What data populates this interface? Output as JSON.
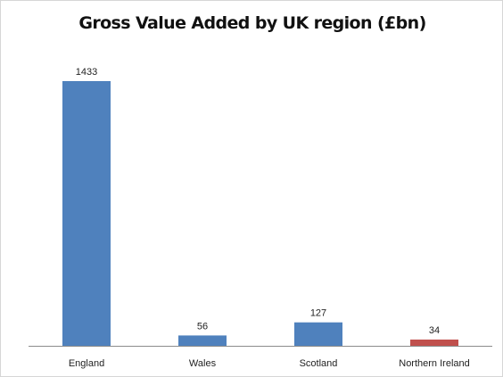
{
  "chart_data": {
    "type": "bar",
    "title": "Gross Value Added by UK region (£bn)",
    "xlabel": "",
    "ylabel": "",
    "categories": [
      "England",
      "Wales",
      "Scotland",
      "Northern Ireland"
    ],
    "values": [
      1433,
      56,
      127,
      34
    ],
    "data_labels": [
      "1433",
      "56",
      "127",
      "34"
    ],
    "bar_colors": [
      "#4f81bd",
      "#4f81bd",
      "#4f81bd",
      "#c0504d"
    ],
    "ylim": [
      0,
      1433
    ],
    "grid": false,
    "legend": "none"
  }
}
